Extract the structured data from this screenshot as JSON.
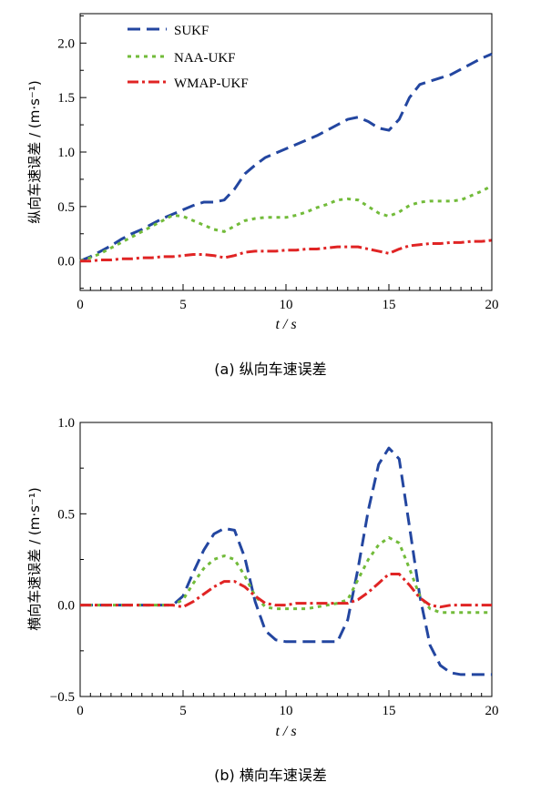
{
  "legend": {
    "items": [
      {
        "label": "SUKF",
        "color": "#2346a0",
        "dash": "14,7",
        "width": 3
      },
      {
        "label": "NAA-UKF",
        "color": "#72bb3a",
        "dash": "4,5",
        "width": 3
      },
      {
        "label": "WMAP-UKF",
        "color": "#e02424",
        "dash": "12,4,3,4",
        "width": 3
      }
    ]
  },
  "chart_data": [
    {
      "type": "line",
      "caption": "(a)  纵向车速误差",
      "xlabel": "t / s",
      "ylabel": "纵向车速误差 / (m·s⁻¹)",
      "xlim": [
        0,
        20
      ],
      "ylim": [
        -0.27,
        2.27
      ],
      "xticks": [
        "0",
        "5",
        "10",
        "15",
        "20"
      ],
      "yticks": [
        "0.0",
        "0.5",
        "1.0",
        "1.5",
        "2.0"
      ],
      "series": [
        {
          "name": "SUKF",
          "x": [
            0,
            0.5,
            1,
            1.5,
            2,
            2.5,
            3,
            3.5,
            4,
            4.5,
            5,
            5.5,
            6,
            6.5,
            7,
            7.5,
            8,
            8.5,
            9,
            9.5,
            10,
            10.5,
            11,
            11.5,
            12,
            12.5,
            13,
            13.5,
            14,
            14.5,
            15,
            15.5,
            16,
            16.5,
            17,
            17.5,
            18,
            18.5,
            19,
            19.5,
            20
          ],
          "y": [
            0,
            0.04,
            0.09,
            0.14,
            0.2,
            0.25,
            0.29,
            0.34,
            0.39,
            0.43,
            0.47,
            0.51,
            0.54,
            0.54,
            0.56,
            0.66,
            0.8,
            0.88,
            0.95,
            0.99,
            1.03,
            1.07,
            1.11,
            1.15,
            1.2,
            1.25,
            1.3,
            1.32,
            1.28,
            1.22,
            1.2,
            1.3,
            1.5,
            1.62,
            1.65,
            1.68,
            1.71,
            1.76,
            1.81,
            1.86,
            1.9
          ]
        },
        {
          "name": "NAA-UKF",
          "x": [
            0,
            0.5,
            1,
            1.5,
            2,
            2.5,
            3,
            3.5,
            4,
            4.5,
            5,
            5.5,
            6,
            6.5,
            7,
            7.5,
            8,
            8.5,
            9,
            9.5,
            10,
            10.5,
            11,
            11.5,
            12,
            12.5,
            13,
            13.5,
            14,
            14.5,
            15,
            15.5,
            16,
            16.5,
            17,
            17.5,
            18,
            18.5,
            19,
            19.5,
            20
          ],
          "y": [
            0,
            0.03,
            0.07,
            0.12,
            0.17,
            0.22,
            0.27,
            0.32,
            0.37,
            0.42,
            0.41,
            0.37,
            0.33,
            0.29,
            0.27,
            0.32,
            0.37,
            0.39,
            0.4,
            0.4,
            0.4,
            0.42,
            0.45,
            0.49,
            0.52,
            0.56,
            0.57,
            0.56,
            0.5,
            0.44,
            0.41,
            0.45,
            0.51,
            0.54,
            0.55,
            0.55,
            0.55,
            0.56,
            0.6,
            0.64,
            0.69
          ]
        },
        {
          "name": "WMAP-UKF",
          "x": [
            0,
            0.5,
            1,
            1.5,
            2,
            2.5,
            3,
            3.5,
            4,
            4.5,
            5,
            5.5,
            6,
            6.5,
            7,
            7.5,
            8,
            8.5,
            9,
            9.5,
            10,
            10.5,
            11,
            11.5,
            12,
            12.5,
            13,
            13.5,
            14,
            14.5,
            15,
            15.5,
            16,
            16.5,
            17,
            17.5,
            18,
            18.5,
            19,
            19.5,
            20
          ],
          "y": [
            0,
            0.0,
            0.01,
            0.01,
            0.02,
            0.02,
            0.03,
            0.03,
            0.04,
            0.04,
            0.05,
            0.06,
            0.06,
            0.05,
            0.03,
            0.05,
            0.08,
            0.09,
            0.09,
            0.09,
            0.1,
            0.1,
            0.11,
            0.11,
            0.12,
            0.13,
            0.13,
            0.13,
            0.11,
            0.09,
            0.07,
            0.11,
            0.14,
            0.15,
            0.16,
            0.16,
            0.17,
            0.17,
            0.18,
            0.18,
            0.19
          ]
        }
      ]
    },
    {
      "type": "line",
      "caption": "(b)  横向车速误差",
      "xlabel": "t / s",
      "ylabel": "横向车速误差 / (m·s⁻¹)",
      "xlim": [
        0,
        20
      ],
      "ylim": [
        -0.5,
        1.0
      ],
      "xticks": [
        "0",
        "5",
        "10",
        "15",
        "20"
      ],
      "yticks": [
        "−0.5",
        "0.0",
        "0.5",
        "1.0"
      ],
      "series": [
        {
          "name": "SUKF",
          "x": [
            0,
            1,
            2,
            3,
            4,
            4.5,
            5,
            5.5,
            6,
            6.5,
            7,
            7.5,
            8,
            8.5,
            9,
            9.5,
            10,
            10.5,
            11,
            11.5,
            12,
            12.5,
            13,
            13.5,
            14,
            14.5,
            15,
            15.5,
            16,
            16.5,
            17,
            17.5,
            18,
            18.5,
            19,
            19.5,
            20
          ],
          "y": [
            0,
            0,
            0,
            0,
            0,
            0.0,
            0.05,
            0.18,
            0.3,
            0.39,
            0.42,
            0.41,
            0.26,
            0.02,
            -0.14,
            -0.19,
            -0.2,
            -0.2,
            -0.2,
            -0.2,
            -0.2,
            -0.2,
            -0.08,
            0.2,
            0.52,
            0.77,
            0.86,
            0.8,
            0.43,
            0.05,
            -0.22,
            -0.33,
            -0.37,
            -0.38,
            -0.38,
            -0.38,
            -0.38
          ]
        },
        {
          "name": "NAA-UKF",
          "x": [
            0,
            1,
            2,
            3,
            4,
            4.5,
            5,
            5.5,
            6,
            6.5,
            7,
            7.5,
            8,
            8.5,
            9,
            9.5,
            10,
            10.5,
            11,
            11.5,
            12,
            12.5,
            13,
            13.5,
            14,
            14.5,
            15,
            15.5,
            16,
            16.5,
            17,
            17.5,
            18,
            18.5,
            19,
            19.5,
            20
          ],
          "y": [
            0,
            0,
            0,
            0,
            0,
            0.0,
            0.03,
            0.12,
            0.2,
            0.25,
            0.27,
            0.25,
            0.16,
            0.05,
            -0.01,
            -0.02,
            -0.02,
            -0.02,
            -0.02,
            -0.01,
            0.0,
            0.01,
            0.03,
            0.14,
            0.25,
            0.33,
            0.37,
            0.34,
            0.2,
            0.05,
            -0.02,
            -0.04,
            -0.04,
            -0.04,
            -0.04,
            -0.04,
            -0.04
          ]
        },
        {
          "name": "WMAP-UKF",
          "x": [
            0,
            1,
            2,
            3,
            4,
            4.5,
            5,
            5.5,
            6,
            6.5,
            7,
            7.5,
            8,
            8.5,
            9,
            9.5,
            10,
            10.5,
            11,
            11.5,
            12,
            12.5,
            13,
            13.5,
            14,
            14.5,
            15,
            15.5,
            16,
            16.5,
            17,
            17.5,
            18,
            18.5,
            19,
            19.5,
            20
          ],
          "y": [
            0,
            0,
            0,
            0,
            0,
            0.0,
            -0.01,
            0.02,
            0.06,
            0.1,
            0.13,
            0.13,
            0.1,
            0.05,
            0.01,
            0.0,
            0.0,
            0.01,
            0.01,
            0.01,
            0.01,
            0.01,
            0.01,
            0.03,
            0.07,
            0.12,
            0.17,
            0.17,
            0.11,
            0.04,
            0.0,
            -0.01,
            0.0,
            0.0,
            0.0,
            0.0,
            0.0
          ]
        }
      ]
    }
  ]
}
